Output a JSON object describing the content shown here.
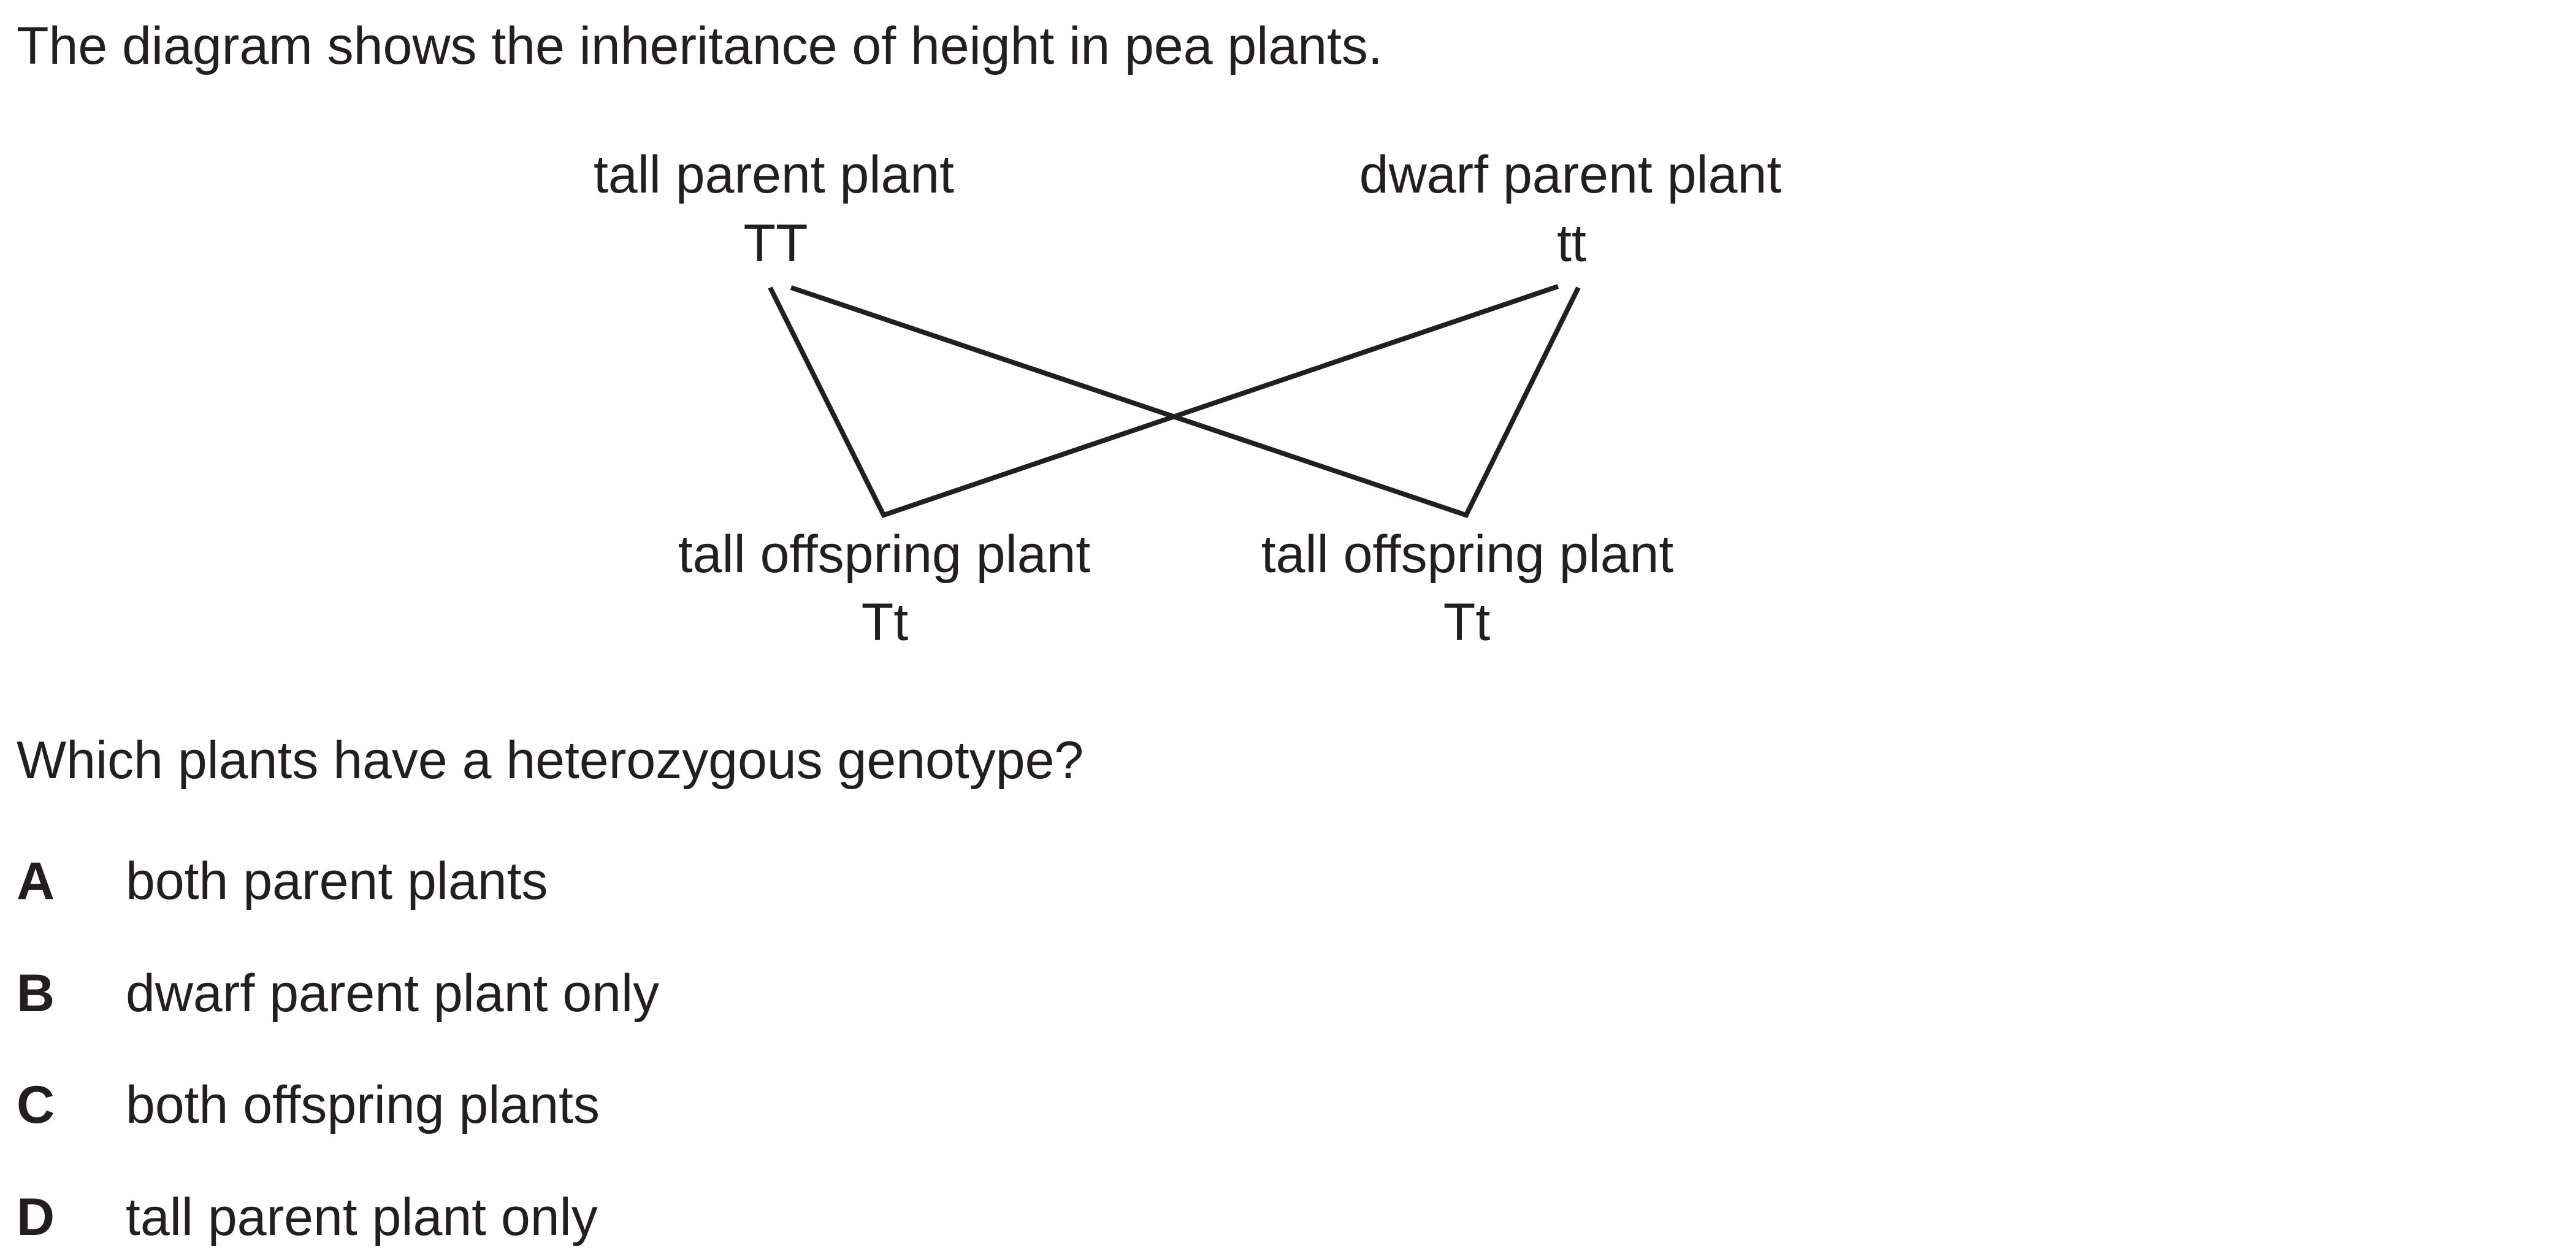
{
  "intro": "The diagram shows the inheritance of height in pea plants.",
  "diagram": {
    "parent_left": {
      "label": "tall parent plant",
      "genotype": "TT"
    },
    "parent_right": {
      "label": "dwarf parent plant",
      "genotype": "tt"
    },
    "offspring_left": {
      "label": "tall offspring plant",
      "genotype": "Tt"
    },
    "offspring_right": {
      "label": "tall offspring plant",
      "genotype": "Tt"
    }
  },
  "question": "Which plants have a heterozygous genotype?",
  "options": [
    {
      "letter": "A",
      "text": "both parent plants"
    },
    {
      "letter": "B",
      "text": "dwarf parent plant only"
    },
    {
      "letter": "C",
      "text": "both offspring plants"
    },
    {
      "letter": "D",
      "text": "tall parent plant only"
    }
  ]
}
